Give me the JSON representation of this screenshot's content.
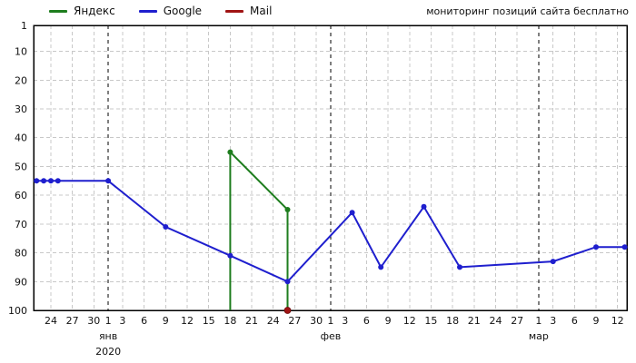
{
  "header": {
    "title": "мониторинг позиций сайта бесплатно",
    "legend": [
      {
        "id": "yandex",
        "label": "Яндекс",
        "color": "#1e7d1e"
      },
      {
        "id": "google",
        "label": "Google",
        "color": "#1f1fce"
      },
      {
        "id": "mail",
        "label": "Mail",
        "color": "#a01414"
      }
    ]
  },
  "chart_data": {
    "type": "line",
    "title": "мониторинг позиций сайта бесплатно",
    "legend_position": "top-left",
    "grid_color": "#c8c8c8",
    "month_line_color": "#000000",
    "y_axis": {
      "min": 1,
      "max": 100,
      "inverted": true,
      "tick_labels": [
        1,
        10,
        20,
        30,
        40,
        50,
        60,
        70,
        80,
        90,
        100
      ],
      "gridlines": [
        10,
        20,
        30,
        40,
        50,
        60,
        70,
        80,
        90
      ]
    },
    "x_axis": {
      "unit": "days_since_2020-01-01",
      "range": [
        -10.4,
        72.3
      ],
      "year_label": "2020",
      "ticks": [
        {
          "d": -8,
          "label": "24"
        },
        {
          "d": -5,
          "label": "27"
        },
        {
          "d": -2,
          "label": "30"
        },
        {
          "d": 0,
          "label": "1"
        },
        {
          "d": 2,
          "label": "3"
        },
        {
          "d": 5,
          "label": "6"
        },
        {
          "d": 8,
          "label": "9"
        },
        {
          "d": 11,
          "label": "12"
        },
        {
          "d": 14,
          "label": "15"
        },
        {
          "d": 17,
          "label": "18"
        },
        {
          "d": 20,
          "label": "21"
        },
        {
          "d": 23,
          "label": "24"
        },
        {
          "d": 26,
          "label": "27"
        },
        {
          "d": 29,
          "label": "30"
        },
        {
          "d": 31,
          "label": "1"
        },
        {
          "d": 33,
          "label": "3"
        },
        {
          "d": 36,
          "label": "6"
        },
        {
          "d": 39,
          "label": "9"
        },
        {
          "d": 42,
          "label": "12"
        },
        {
          "d": 45,
          "label": "15"
        },
        {
          "d": 48,
          "label": "18"
        },
        {
          "d": 51,
          "label": "21"
        },
        {
          "d": 54,
          "label": "24"
        },
        {
          "d": 57,
          "label": "27"
        },
        {
          "d": 60,
          "label": "1"
        },
        {
          "d": 62,
          "label": "3"
        },
        {
          "d": 65,
          "label": "6"
        },
        {
          "d": 68,
          "label": "9"
        },
        {
          "d": 71,
          "label": "12"
        }
      ],
      "month_lines": [
        {
          "d": 0,
          "label": "янв",
          "year": "2020"
        },
        {
          "d": 31,
          "label": "фев"
        },
        {
          "d": 60,
          "label": "мар"
        }
      ]
    },
    "series": [
      {
        "id": "yandex",
        "name": "Яндекс",
        "color": "#1e7d1e",
        "line": true,
        "points": [
          {
            "d": 17,
            "v": 100,
            "marker": false
          },
          {
            "d": 17,
            "v": 45,
            "marker": true
          },
          {
            "d": 25,
            "v": 65,
            "marker": true
          },
          {
            "d": 25,
            "v": 100,
            "marker": false
          }
        ]
      },
      {
        "id": "google",
        "name": "Google",
        "color": "#1f1fce",
        "line": true,
        "points": [
          {
            "d": -10,
            "v": 55,
            "marker": true
          },
          {
            "d": -9,
            "v": 55,
            "marker": true
          },
          {
            "d": -8,
            "v": 55,
            "marker": true
          },
          {
            "d": -7,
            "v": 55,
            "marker": true
          },
          {
            "d": 0,
            "v": 55,
            "marker": true
          },
          {
            "d": 8,
            "v": 71,
            "marker": true
          },
          {
            "d": 17,
            "v": 81,
            "marker": true
          },
          {
            "d": 25,
            "v": 90,
            "marker": true
          },
          {
            "d": 34,
            "v": 66,
            "marker": true
          },
          {
            "d": 38,
            "v": 85,
            "marker": true
          },
          {
            "d": 44,
            "v": 64,
            "marker": true
          },
          {
            "d": 49,
            "v": 85,
            "marker": true
          },
          {
            "d": 62,
            "v": 83,
            "marker": true
          },
          {
            "d": 68,
            "v": 78,
            "marker": true
          },
          {
            "d": 72,
            "v": 78,
            "marker": true
          }
        ]
      },
      {
        "id": "mail",
        "name": "Mail",
        "color": "#a01414",
        "line": false,
        "points": [
          {
            "d": 25,
            "v": 100,
            "marker": true
          }
        ]
      }
    ]
  }
}
